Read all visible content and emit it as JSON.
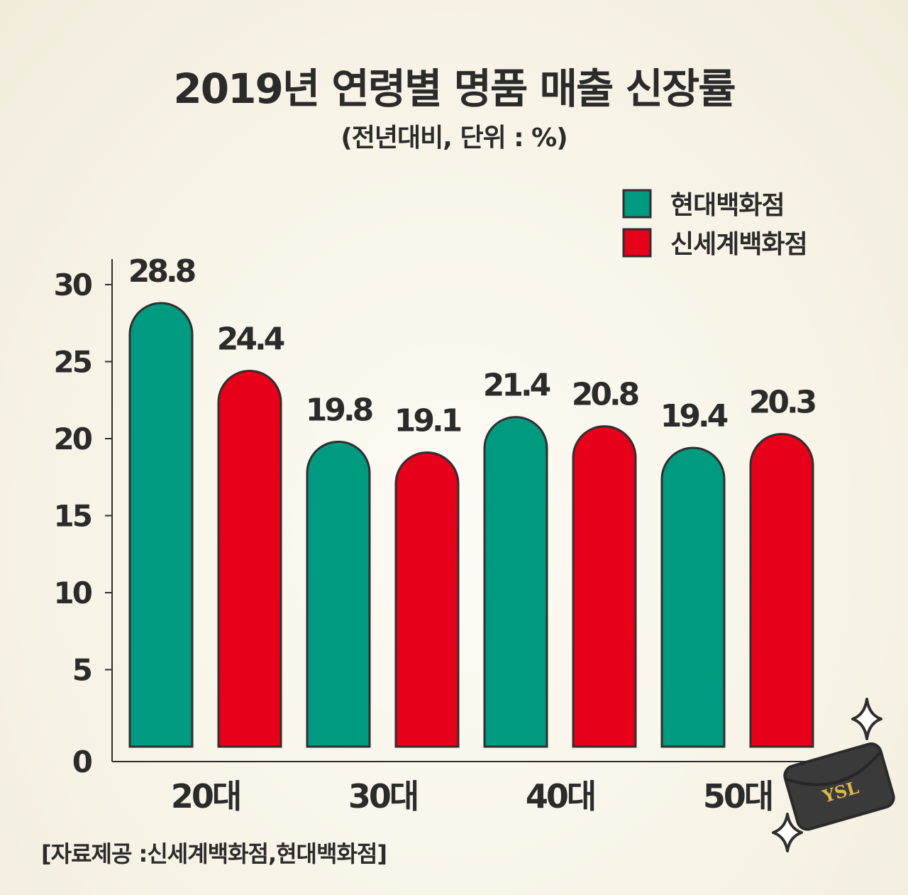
{
  "title": "2019년 연령별 명품 매출 신장률",
  "subtitle": "(전년대비, 단위 : %)",
  "source": "[자료제공 :신세계백화점,현대백화점]",
  "colors": {
    "hyundai": "#009a80",
    "shinsegae": "#e6001a",
    "outline": "#2f2f2f",
    "text": "#2b2b2b"
  },
  "chart_data": {
    "type": "bar",
    "categories": [
      "20대",
      "30대",
      "40대",
      "50대"
    ],
    "series": [
      {
        "name": "현대백화점",
        "values": [
          28.8,
          19.8,
          21.4,
          19.4
        ]
      },
      {
        "name": "신세계백화점",
        "values": [
          24.4,
          19.1,
          20.8,
          20.3
        ]
      }
    ],
    "data_labels": [
      [
        "28.8",
        "19.8",
        "21.4",
        "19.4"
      ],
      [
        "24.4",
        "19.1",
        "20.8",
        "20.3"
      ]
    ],
    "yticks": [
      "0",
      "5",
      "10",
      "15",
      "20",
      "25",
      "30"
    ],
    "ylim": [
      0,
      30
    ],
    "legend_position": "top-right",
    "grid": false
  }
}
